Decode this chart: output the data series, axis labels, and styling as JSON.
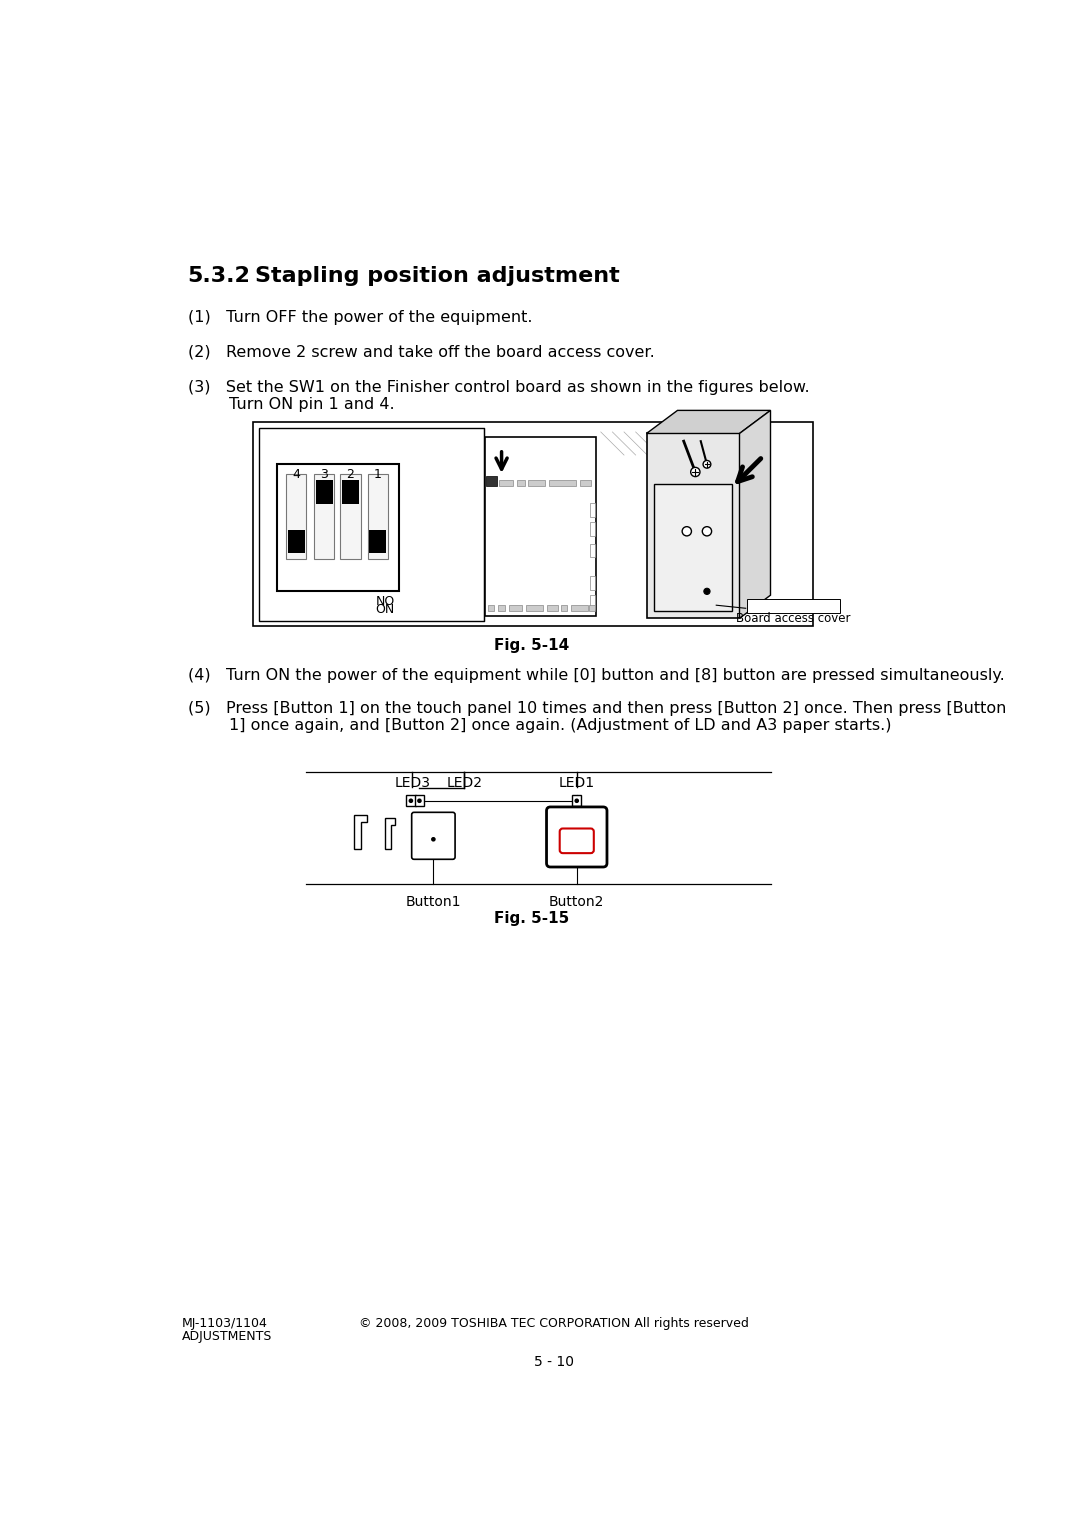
{
  "page_bg": "#ffffff",
  "section_title_num": "5.3.2",
  "section_title_text": "Stapling position adjustment",
  "step1": "(1)   Turn OFF the power of the equipment.",
  "step2": "(2)   Remove 2 screw and take off the board access cover.",
  "step3_line1": "(3)   Set the SW1 on the Finisher control board as shown in the figures below.",
  "step3_line2": "        Turn ON pin 1 and 4.",
  "fig1_caption": "Fig. 5-14",
  "step4": "(4)   Turn ON the power of the equipment while [0] button and [8] button are pressed simultaneously.",
  "step5_line1": "(5)   Press [Button 1] on the touch panel 10 times and then press [Button 2] once. Then press [Button",
  "step5_line2": "        1] once again, and [Button 2] once again. (Adjustment of LD and A3 paper starts.)",
  "fig2_caption": "Fig. 5-15",
  "footer_left1": "MJ-1103/1104",
  "footer_left2": "ADJUSTMENTS",
  "footer_center": "© 2008, 2009 TOSHIBA TEC CORPORATION All rights reserved",
  "footer_page": "5 - 10",
  "led3_label": "LED3",
  "led2_label": "LED2",
  "led1_label": "LED1",
  "button1_label": "Button1",
  "button2_label": "Button2",
  "board_access_cover_label": "Board access cover",
  "no_label": "NO",
  "on_label": "ON"
}
